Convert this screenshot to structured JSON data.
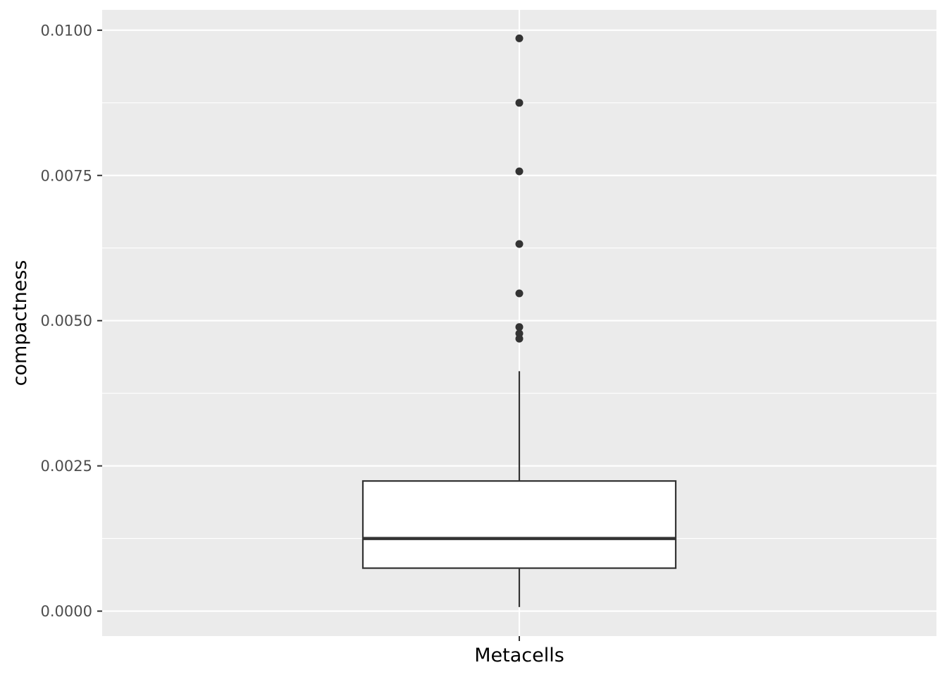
{
  "chart_data": {
    "type": "boxplot",
    "title": "",
    "xlabel": "",
    "ylabel": "compactness",
    "categories": [
      "Metacells"
    ],
    "ylim": [
      -0.00043,
      0.01035
    ],
    "y_ticks": [
      0.0,
      0.0025,
      0.005,
      0.0075,
      0.01
    ],
    "y_tick_labels": [
      "0.0000",
      "0.0025",
      "0.0050",
      "0.0075",
      "0.0100"
    ],
    "boxes": [
      {
        "category": "Metacells",
        "whisker_low": 7e-05,
        "q1": 0.00074,
        "median": 0.00125,
        "q3": 0.00224,
        "whisker_high": 0.00413,
        "outliers": [
          0.00986,
          0.00875,
          0.00757,
          0.00632,
          0.00547,
          0.00489,
          0.00478,
          0.00469
        ]
      }
    ],
    "grid": true,
    "legend": "none",
    "colors": {
      "panel_background": "#ebebeb",
      "grid_major": "#ffffff",
      "grid_minor": "#ffffff",
      "box_fill": "#ffffff",
      "box_line": "#333333",
      "outlier": "#333333",
      "tick": "#333333",
      "tick_label": "#4d4d4d"
    }
  }
}
